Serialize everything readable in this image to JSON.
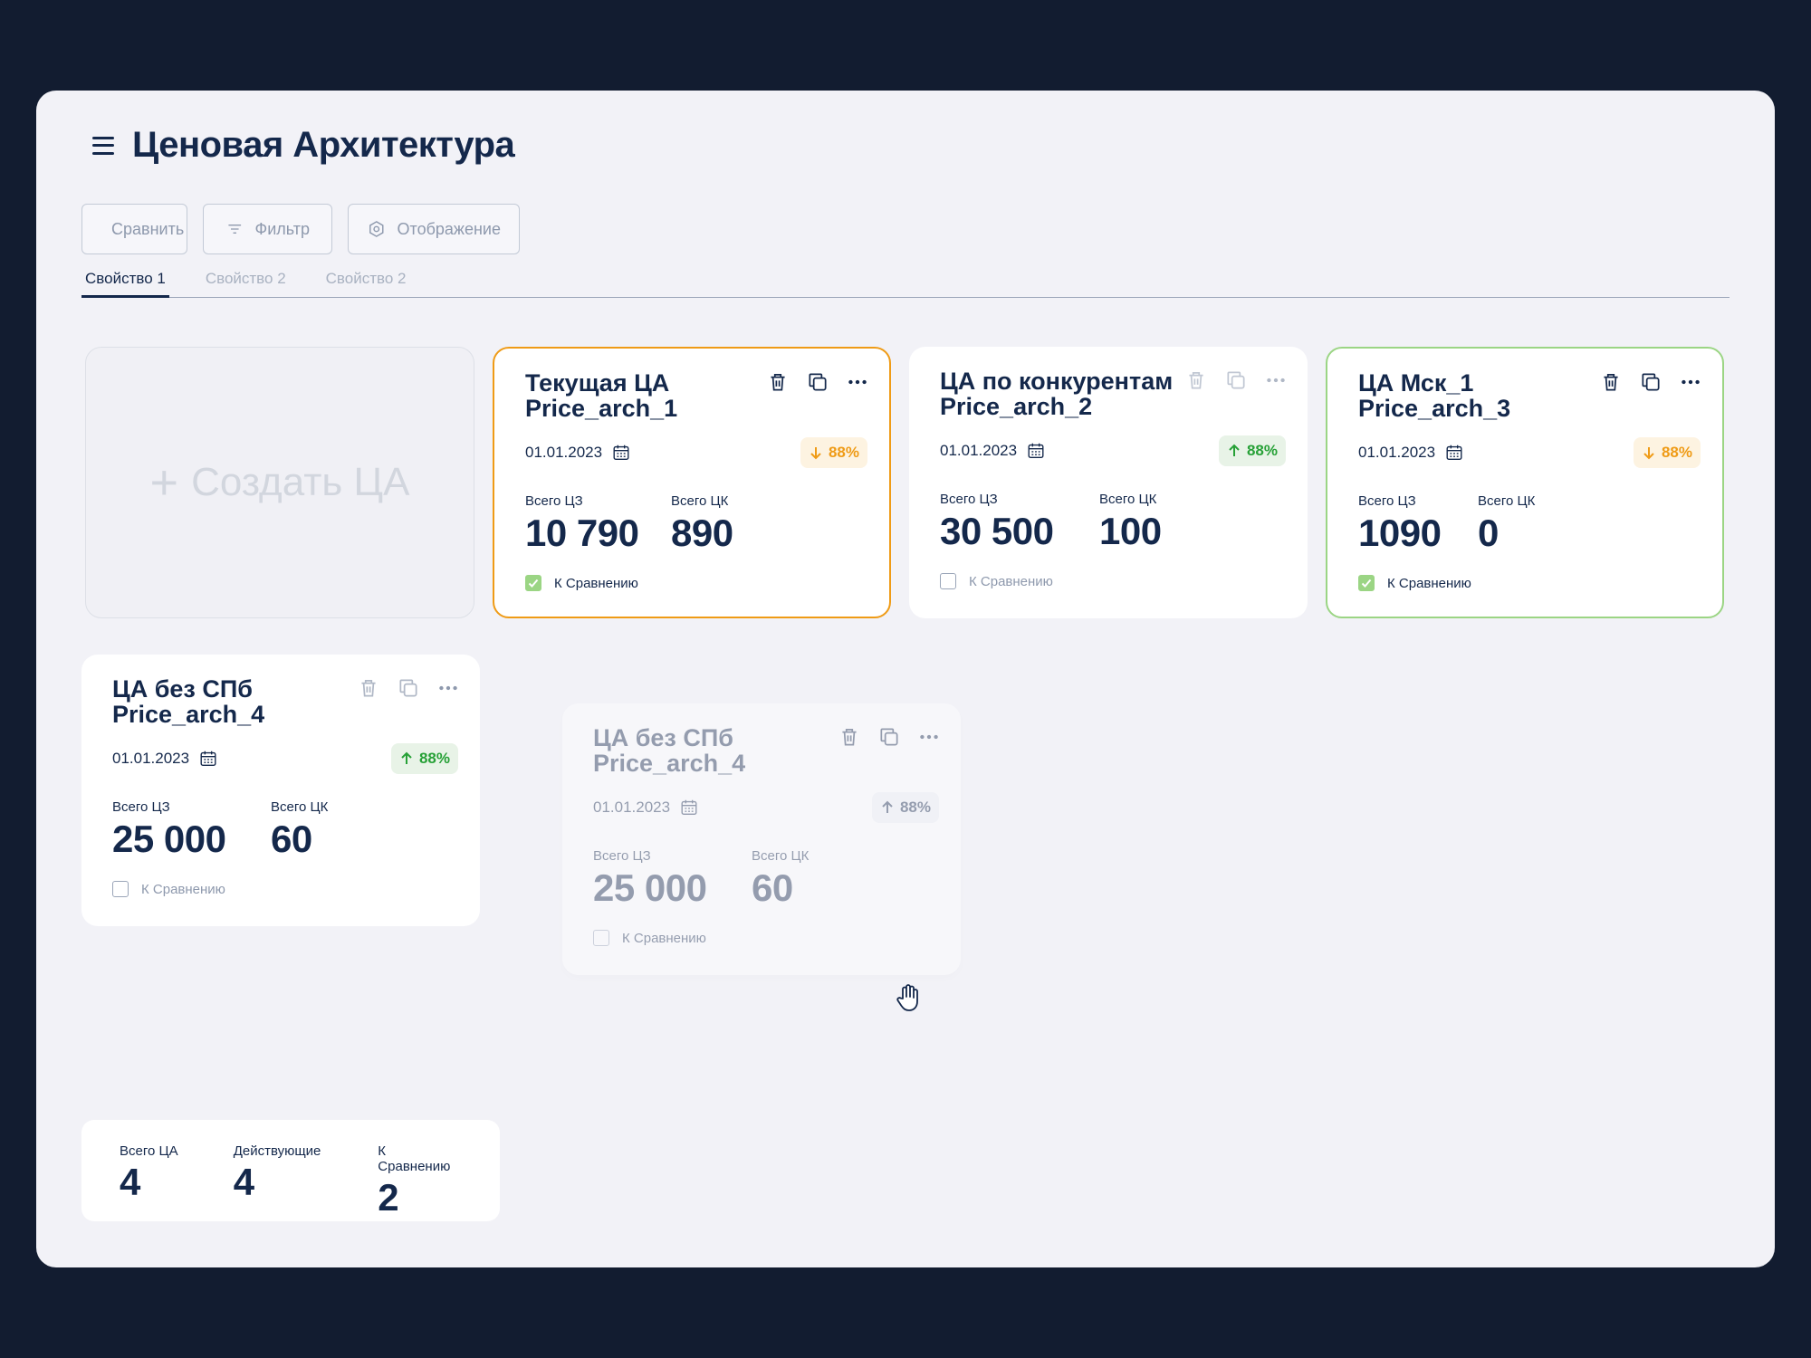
{
  "header": {
    "title": "Ценовая Архитектура"
  },
  "toolbar": {
    "compare_label": "Сравнить",
    "filter_label": "Фильтр",
    "view_label": "Отображение"
  },
  "tabs": [
    {
      "label": "Свойство 1",
      "active": true
    },
    {
      "label": "Свойство 2",
      "active": false
    },
    {
      "label": "Свойство 2",
      "active": false
    }
  ],
  "create_card": {
    "label": "Создать ЦА"
  },
  "cards": [
    {
      "title_line1": "Текущая ЦА",
      "title_line2": "Price_arch_1",
      "date": "01.01.2023",
      "trend": "down",
      "trend_value": "88%",
      "label_cz": "Всего ЦЗ",
      "value_cz": "10 790",
      "label_ck": "Всего ЦК",
      "value_ck": "890",
      "compare_label": "К Сравнению",
      "compare_checked": true,
      "highlight": "orange"
    },
    {
      "title_line1": "ЦА по конкурентам",
      "title_line2": "Price_arch_2",
      "date": "01.01.2023",
      "trend": "up",
      "trend_value": "88%",
      "label_cz": "Всего ЦЗ",
      "value_cz": "30 500",
      "label_ck": "Всего ЦК",
      "value_ck": "100",
      "compare_label": "К Сравнению",
      "compare_checked": false,
      "highlight": "none"
    },
    {
      "title_line1": "ЦА Мск_1",
      "title_line2": "Price_arch_3",
      "date": "01.01.2023",
      "trend": "down",
      "trend_value": "88%",
      "label_cz": "Всего ЦЗ",
      "value_cz": "1090",
      "label_ck": "Всего ЦК",
      "value_ck": "0",
      "compare_label": "К Сравнению",
      "compare_checked": true,
      "highlight": "green"
    },
    {
      "title_line1": "ЦА без СПб",
      "title_line2": "Price_arch_4",
      "date": "01.01.2023",
      "trend": "up",
      "trend_value": "88%",
      "label_cz": "Всего ЦЗ",
      "value_cz": "25 000",
      "label_ck": "Всего ЦК",
      "value_ck": "60",
      "compare_label": "К Сравнению",
      "compare_checked": false,
      "highlight": "none"
    },
    {
      "title_line1": "ЦА без СПб",
      "title_line2": "Price_arch_4",
      "date": "01.01.2023",
      "trend": "up",
      "trend_value": "88%",
      "label_cz": "Всего ЦЗ",
      "value_cz": "25 000",
      "label_ck": "Всего ЦК",
      "value_ck": "60",
      "compare_label": "К Сравнению",
      "compare_checked": false,
      "highlight": "ghost"
    }
  ],
  "summary": {
    "total_label": "Всего ЦА",
    "total_value": "4",
    "active_label": "Действующие",
    "active_value": "4",
    "compare_label": "К Сравнению",
    "compare_value": "2"
  },
  "colors": {
    "background": "#121c30",
    "window": "#f2f2f7",
    "text": "#14284b",
    "orange": "#ef9b16",
    "green": "#27a137",
    "green_border": "#9bd584"
  },
  "icons": [
    "menu-icon",
    "compare-icon",
    "filter-icon",
    "settings-icon",
    "plus-icon",
    "trash-icon",
    "copy-icon",
    "more-icon",
    "calendar-icon",
    "arrow-down-icon",
    "arrow-up-icon",
    "check-icon",
    "grab-cursor-icon"
  ]
}
